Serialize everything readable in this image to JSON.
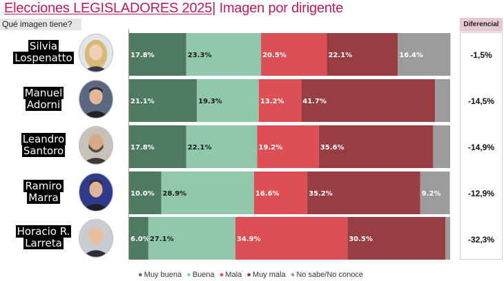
{
  "header": {
    "title_part1": "Elecciones LEGISLADORES 2025",
    "title_part2": "| Imagen por dirigente",
    "question": "Qué imagen tiene?",
    "diff_header": "Diferencial"
  },
  "colors": {
    "muy_buena": "#4f7a62",
    "buena": "#8fc8aa",
    "mala": "#de4f55",
    "muy_mala": "#983e42",
    "no_sabe": "#9c9c9c"
  },
  "chart_data": {
    "type": "bar",
    "orientation": "horizontal",
    "stacked": true,
    "categories": [
      "Silvia Lospenatto",
      "Manuel Adorni",
      "Leandro Santoro",
      "Ramiro Marra",
      "Horacio R. Larreta"
    ],
    "series": [
      {
        "name": "Muy buena",
        "values": [
          17.8,
          21.1,
          17.8,
          10.0,
          6.0
        ],
        "labels": [
          "17.8%",
          "21.1%",
          "17.8%",
          "10.0%",
          "6.0%"
        ]
      },
      {
        "name": "Buena",
        "values": [
          23.3,
          19.3,
          22.1,
          28.9,
          27.1
        ],
        "labels": [
          "23.3%",
          "19.3%",
          "22.1%",
          "28.9%",
          "27.1%"
        ]
      },
      {
        "name": "Mala",
        "values": [
          20.5,
          13.2,
          19.2,
          16.6,
          34.9
        ],
        "labels": [
          "20.5%",
          "13.2%",
          "19.2%",
          "16.6%",
          "34.9%"
        ]
      },
      {
        "name": "Muy mala",
        "values": [
          22.1,
          41.7,
          35.6,
          35.2,
          30.5
        ],
        "labels": [
          "22.1%",
          "41.7%",
          "35.6%",
          "35.2%",
          "30.5%"
        ]
      },
      {
        "name": "No sabe/No conoce",
        "values": [
          16.4,
          4.7,
          5.3,
          9.2,
          1.5
        ],
        "labels": [
          "16.4%",
          "",
          "",
          "9.2%",
          ""
        ]
      }
    ],
    "xlim": [
      0,
      100
    ],
    "legend_position": "bottom",
    "grid": false
  },
  "candidates": [
    {
      "name_line1": "Silvia",
      "name_line2": "Lospenatto",
      "diferencial": "-1,5%",
      "avatar": "woman-portrait-icon"
    },
    {
      "name_line1": "Manuel",
      "name_line2": "Adorni",
      "diferencial": "-14,5%",
      "avatar": "man-portrait-icon"
    },
    {
      "name_line1": "Leandro",
      "name_line2": "Santoro",
      "diferencial": "-14,9%",
      "avatar": "man-portrait-icon"
    },
    {
      "name_line1": "Ramiro",
      "name_line2": "Marra",
      "diferencial": "-12,9%",
      "avatar": "man-portrait-icon"
    },
    {
      "name_line1": "Horacio R.",
      "name_line2": "Larreta",
      "diferencial": "-32,3%",
      "avatar": "man-portrait-icon"
    }
  ],
  "legend": [
    {
      "label": "Muy buena"
    },
    {
      "label": "Buena"
    },
    {
      "label": "Mala"
    },
    {
      "label": "Muy mala"
    },
    {
      "label": "No sabe/No conoce"
    }
  ]
}
